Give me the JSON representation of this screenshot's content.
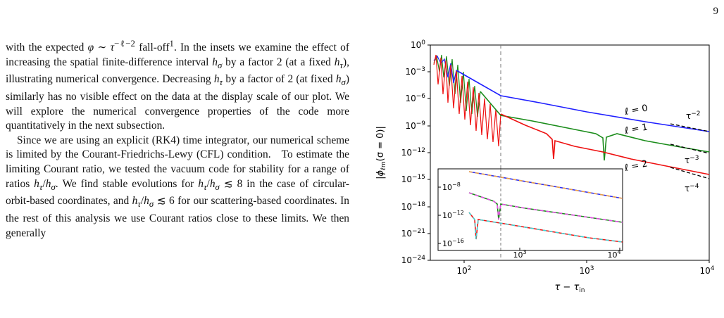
{
  "page_number": "9",
  "body": {
    "paragraph1": "with the expected φ ∼ τ^{−ℓ−2} fall-off¹. In the insets we examine the effect of increasing the spatial finite-difference interval h_σ by a factor 2 (at a fixed h_τ), illustrating numerical convergence. Decreasing h_τ by a factor of 2 (at fixed h_σ) similarly has no visible effect on the data at the display scale of our plot. We will explore the numerical convergence properties of the code more quantitatively in the next subsection.",
    "paragraph2": "Since we are using an explicit (RK4) time integrator, our numerical scheme is limited by the Courant-Friedrichs-Lewy (CFL) condition. To estimate the limiting Courant ratio, we tested the vacuum code for stability for a range of ratios h_τ/h_σ. We find stable evolutions for h_τ/h_σ ≲ 8 in the case of circular-orbit-based coordinates, and h_τ/h_σ ≲ 6 for our scattering-based coordinates. In the rest of this analysis we use Courant ratios close to these limits. We then generally"
  },
  "chart_data": [
    {
      "type": "line",
      "xlabel": "τ − τ_in",
      "ylabel": "|φ_ℓm(σ = 0)|",
      "xscale": "log",
      "yscale": "log",
      "xlim": [
        50,
        10000
      ],
      "ylim": [
        1e-24,
        1
      ],
      "x_ticks": [
        "10^2",
        "10^3",
        "10^4"
      ],
      "y_ticks": [
        "10^0",
        "10^-3",
        "10^-6",
        "10^-9",
        "10^-12",
        "10^-15",
        "10^-18",
        "10^-21",
        "10^-24"
      ],
      "vertical_marker_x": 200,
      "series": [
        {
          "name": "ℓ = 0",
          "color": "#1f1fff",
          "x": [
            60,
            80,
            100,
            150,
            200,
            300,
            500,
            1000,
            2000,
            5000,
            10000
          ],
          "y": [
            0.01,
            0.001,
            0.0001,
            1e-05,
            3e-06,
            1e-06,
            3e-07,
            8e-08,
            2e-08,
            3e-09,
            8e-10
          ]
        },
        {
          "name": "ℓ = 1",
          "color": "#1a8c1a",
          "x": [
            60,
            80,
            100,
            150,
            200,
            300,
            500,
            700,
            1000,
            2000,
            5000,
            10000
          ],
          "y": [
            0.01,
            0.001,
            0.0001,
            1e-06,
            5e-08,
            1e-08,
            3e-09,
            "dip",
            2e-10,
            3e-11,
            4e-12,
            5e-13
          ]
        },
        {
          "name": "ℓ = 2",
          "color": "#ee1111",
          "x": [
            60,
            80,
            100,
            150,
            200,
            300,
            500,
            700,
            1000,
            2000,
            5000,
            10000
          ],
          "y": [
            0.01,
            0.001,
            1e-05,
            1e-07,
            1e-09,
            5e-11,
            3e-12,
            1e-12,
            4e-13,
            4e-14,
            1.5e-15,
            1e-16
          ]
        }
      ],
      "reference_slopes": [
        "τ^{-2}",
        "τ^{-3}",
        "τ^{-4}"
      ],
      "curve_labels": [
        "ℓ = 0",
        "ℓ = 1",
        "ℓ = 2"
      ]
    },
    {
      "type": "line",
      "role": "inset",
      "xscale": "log",
      "yscale": "log",
      "x_ticks": [
        "10^3",
        "10^4"
      ],
      "y_ticks": [
        "10^-8",
        "10^-12",
        "10^-16"
      ],
      "vertical_marker_x": 200
    }
  ]
}
